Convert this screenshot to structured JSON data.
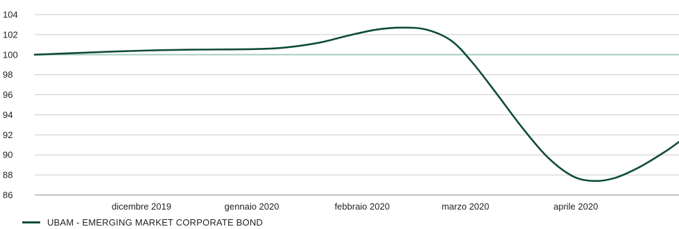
{
  "chart_data": {
    "type": "line",
    "title": "",
    "xlabel": "",
    "ylabel": "",
    "ylim": [
      86,
      104
    ],
    "yticks": [
      86,
      88,
      90,
      92,
      94,
      96,
      98,
      100,
      102,
      104
    ],
    "xlim": [
      "2019-11-01",
      "2020-04-30"
    ],
    "xtick_labels": [
      {
        "label": "dicembre 2019",
        "date": "2019-12-01"
      },
      {
        "label": "gennaio 2020",
        "date": "2020-01-01"
      },
      {
        "label": "febbraio 2020",
        "date": "2020-02-01"
      },
      {
        "label": "marzo 2020",
        "date": "2020-03-01"
      },
      {
        "label": "aprile 2020",
        "date": "2020-04-01"
      }
    ],
    "grid": true,
    "reference_line": {
      "value": 100,
      "color": "#a8cdbc"
    },
    "legend_position": "bottom-left",
    "series": [
      {
        "name": "UBAM - EMERGING MARKET CORPORATE BOND",
        "color": "#0d4b36",
        "points": [
          {
            "x": "2019-11-01",
            "y": 100.0
          },
          {
            "x": "2019-11-15",
            "y": 100.2
          },
          {
            "x": "2019-12-01",
            "y": 100.4
          },
          {
            "x": "2019-12-15",
            "y": 100.5
          },
          {
            "x": "2020-01-01",
            "y": 100.55
          },
          {
            "x": "2020-01-10",
            "y": 100.7
          },
          {
            "x": "2020-01-20",
            "y": 101.2
          },
          {
            "x": "2020-01-28",
            "y": 101.9
          },
          {
            "x": "2020-02-05",
            "y": 102.5
          },
          {
            "x": "2020-02-12",
            "y": 102.7
          },
          {
            "x": "2020-02-19",
            "y": 102.5
          },
          {
            "x": "2020-02-26",
            "y": 101.4
          },
          {
            "x": "2020-03-03",
            "y": 99.2
          },
          {
            "x": "2020-03-10",
            "y": 96.0
          },
          {
            "x": "2020-03-17",
            "y": 92.7
          },
          {
            "x": "2020-03-24",
            "y": 89.8
          },
          {
            "x": "2020-03-31",
            "y": 87.9
          },
          {
            "x": "2020-04-06",
            "y": 87.4
          },
          {
            "x": "2020-04-12",
            "y": 87.7
          },
          {
            "x": "2020-04-19",
            "y": 88.8
          },
          {
            "x": "2020-04-26",
            "y": 90.3
          },
          {
            "x": "2020-04-30",
            "y": 91.3
          }
        ]
      }
    ]
  }
}
